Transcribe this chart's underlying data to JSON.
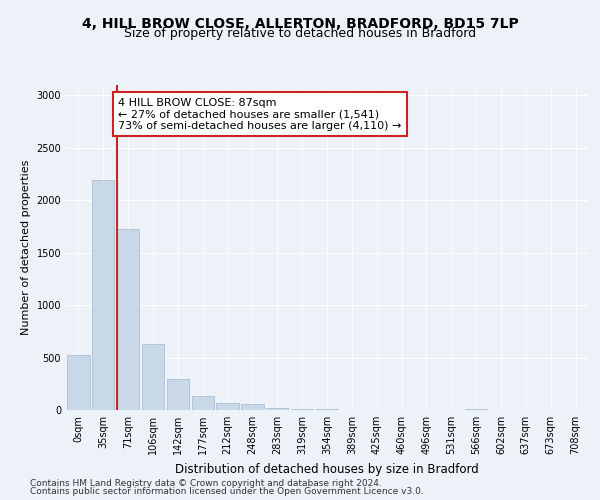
{
  "title1": "4, HILL BROW CLOSE, ALLERTON, BRADFORD, BD15 7LP",
  "title2": "Size of property relative to detached houses in Bradford",
  "xlabel": "Distribution of detached houses by size in Bradford",
  "ylabel": "Number of detached properties",
  "categories": [
    "0sqm",
    "35sqm",
    "71sqm",
    "106sqm",
    "142sqm",
    "177sqm",
    "212sqm",
    "248sqm",
    "283sqm",
    "319sqm",
    "354sqm",
    "389sqm",
    "425sqm",
    "460sqm",
    "496sqm",
    "531sqm",
    "566sqm",
    "602sqm",
    "637sqm",
    "673sqm",
    "708sqm"
  ],
  "bar_values": [
    520,
    2190,
    1730,
    630,
    295,
    130,
    70,
    55,
    15,
    5,
    5,
    0,
    0,
    0,
    0,
    0,
    5,
    0,
    0,
    0,
    0
  ],
  "bar_color": "#c8d8e8",
  "bar_edge_color": "#a0b8cc",
  "reference_line_color": "#cc2222",
  "annotation_text": "4 HILL BROW CLOSE: 87sqm\n← 27% of detached houses are smaller (1,541)\n73% of semi-detached houses are larger (4,110) →",
  "annotation_box_color": "#cc2222",
  "ylim": [
    0,
    3100
  ],
  "yticks": [
    0,
    500,
    1000,
    1500,
    2000,
    2500,
    3000
  ],
  "footnote1": "Contains HM Land Registry data © Crown copyright and database right 2024.",
  "footnote2": "Contains public sector information licensed under the Open Government Licence v3.0.",
  "background_color": "#edf2f8",
  "plot_bg_color": "#edf2f8",
  "grid_color": "#ffffff",
  "title1_fontsize": 10,
  "title2_fontsize": 9,
  "xlabel_fontsize": 8.5,
  "ylabel_fontsize": 8,
  "tick_fontsize": 7,
  "annotation_fontsize": 8,
  "footnote_fontsize": 6.5
}
